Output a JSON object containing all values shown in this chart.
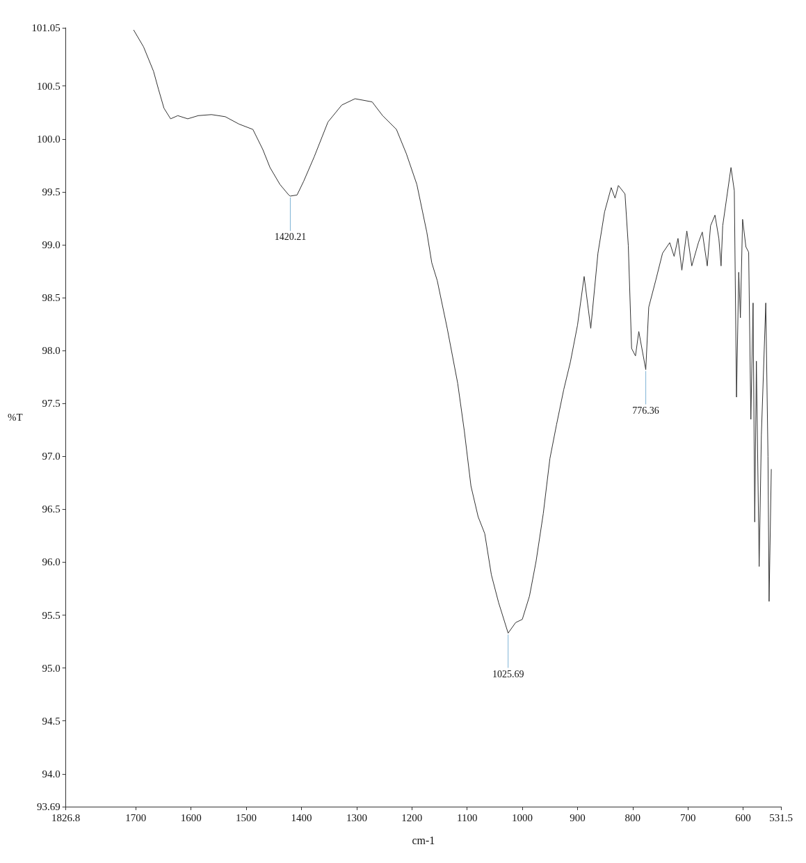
{
  "chart_data": {
    "type": "line",
    "xlabel": "cm-1",
    "ylabel": "%T",
    "marker": "none",
    "grid": false,
    "xlim": [
      1826.8,
      531.5
    ],
    "xticks": [
      1826.8,
      1700,
      1600,
      1500,
      1400,
      1300,
      1200,
      1100,
      1000,
      900,
      800,
      700,
      600,
      531.5
    ],
    "ylim": [
      93.69,
      101.05
    ],
    "yticks": [
      93.69,
      {
        "value": 94,
        "label": "94.0"
      },
      94.5,
      {
        "value": 95,
        "label": "95.0"
      },
      95.5,
      {
        "value": 96,
        "label": "96.0"
      },
      96.5,
      {
        "value": 97,
        "label": "97.0"
      },
      97.5,
      {
        "value": 98,
        "label": "98.0"
      },
      98.5,
      {
        "value": 99,
        "label": "99.0"
      },
      99.5,
      {
        "value": 100,
        "label": "100.0"
      },
      100.5,
      101.05
    ],
    "series": [
      {
        "color": "#333333",
        "x": [
          1704,
          1686,
          1668,
          1659,
          1649,
          1637,
          1624,
          1606,
          1587,
          1563,
          1538,
          1513,
          1488,
          1470,
          1457,
          1439,
          1423,
          1420.21,
          1408,
          1396,
          1377,
          1352,
          1327,
          1303,
          1272,
          1253,
          1228,
          1210,
          1191,
          1173,
          1164,
          1154,
          1136,
          1117,
          1105,
          1093,
          1080,
          1068,
          1056,
          1043,
          1025.69,
          1012,
          1000,
          987,
          975,
          962,
          950,
          938,
          925,
          913,
          900,
          888,
          876,
          863,
          851,
          839,
          832,
          826,
          814,
          808,
          802,
          795,
          789,
          776.36,
          771,
          758,
          746,
          733,
          725,
          718,
          711,
          702,
          693,
          681,
          674,
          665,
          659,
          651,
          644,
          640,
          637,
          622,
          616,
          612,
          608,
          605,
          601,
          595,
          590,
          586,
          582,
          579,
          576,
          571,
          567,
          559,
          555,
          553,
          549
        ],
        "values": [
          101.03,
          100.87,
          100.64,
          100.47,
          100.29,
          100.19,
          100.22,
          100.19,
          100.22,
          100.23,
          100.21,
          100.14,
          100.09,
          99.9,
          99.73,
          99.57,
          99.47,
          99.46,
          99.47,
          99.6,
          99.83,
          100.16,
          100.32,
          100.38,
          100.35,
          100.22,
          100.09,
          99.86,
          99.57,
          99.12,
          98.83,
          98.66,
          98.21,
          97.69,
          97.24,
          96.72,
          96.43,
          96.27,
          95.88,
          95.62,
          95.33,
          95.43,
          95.46,
          95.68,
          96.01,
          96.46,
          96.98,
          97.3,
          97.63,
          97.89,
          98.24,
          98.7,
          98.21,
          98.92,
          99.31,
          99.54,
          99.44,
          99.56,
          99.48,
          98.99,
          98.02,
          97.95,
          98.18,
          97.82,
          98.41,
          98.67,
          98.92,
          99.02,
          98.89,
          99.06,
          98.76,
          99.13,
          98.8,
          99.02,
          99.12,
          98.8,
          99.18,
          99.28,
          99.06,
          98.8,
          99.18,
          99.73,
          99.51,
          97.56,
          98.74,
          98.31,
          99.24,
          98.98,
          98.93,
          97.35,
          98.45,
          96.38,
          97.9,
          95.96,
          97.2,
          98.45,
          97.0,
          95.63,
          96.88
        ]
      }
    ],
    "annotations": [
      {
        "text": "1420.21",
        "x": 1420.21,
        "y": 99.46
      },
      {
        "text": "1025.69",
        "x": 1025.69,
        "y": 95.33
      },
      {
        "text": "776.36",
        "x": 776.36,
        "y": 97.82
      }
    ]
  }
}
